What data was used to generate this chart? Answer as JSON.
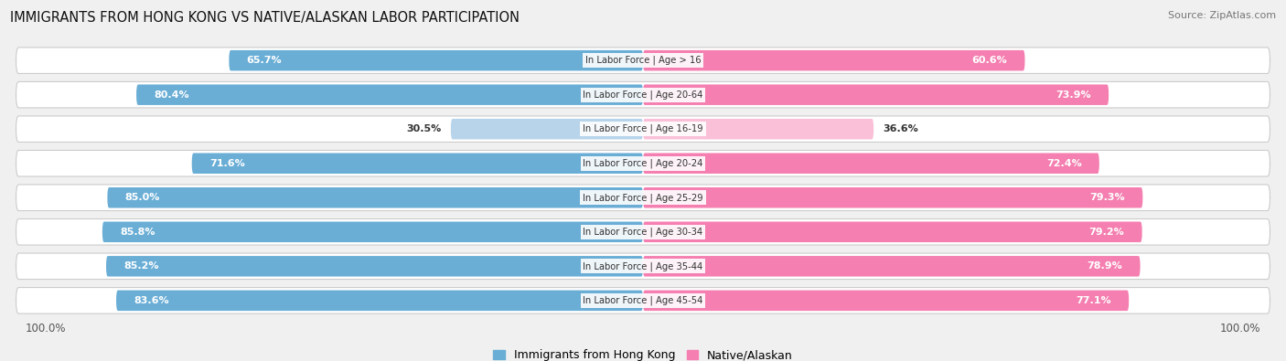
{
  "title": "IMMIGRANTS FROM HONG KONG VS NATIVE/ALASKAN LABOR PARTICIPATION",
  "source": "Source: ZipAtlas.com",
  "categories": [
    "In Labor Force | Age > 16",
    "In Labor Force | Age 20-64",
    "In Labor Force | Age 16-19",
    "In Labor Force | Age 20-24",
    "In Labor Force | Age 25-29",
    "In Labor Force | Age 30-34",
    "In Labor Force | Age 35-44",
    "In Labor Force | Age 45-54"
  ],
  "hk_values": [
    65.7,
    80.4,
    30.5,
    71.6,
    85.0,
    85.8,
    85.2,
    83.6
  ],
  "native_values": [
    60.6,
    73.9,
    36.6,
    72.4,
    79.3,
    79.2,
    78.9,
    77.1
  ],
  "hk_color": "#6aaed6",
  "hk_color_light": "#b8d4ea",
  "native_color": "#f47fb0",
  "native_color_light": "#f9c0d8",
  "bg_color": "#f0f0f0",
  "row_bg": "#ffffff",
  "bar_height": 0.6,
  "legend_hk": "Immigrants from Hong Kong",
  "legend_native": "Native/Alaskan"
}
